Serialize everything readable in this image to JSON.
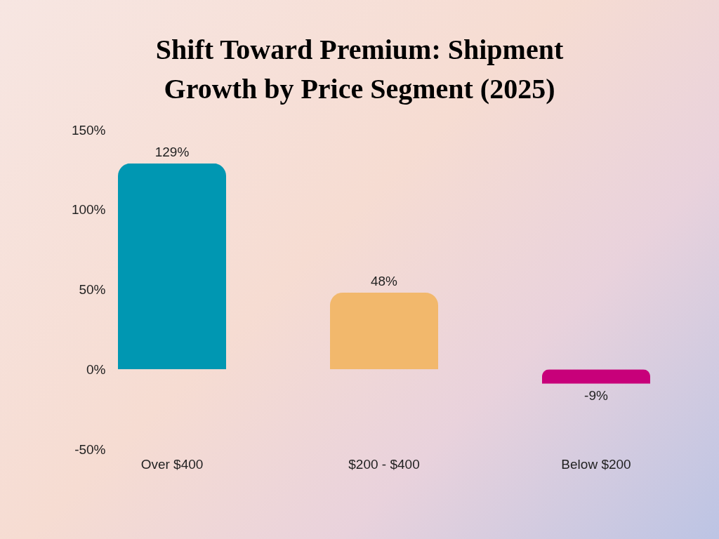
{
  "chart_data": {
    "type": "bar",
    "title": "Shift Toward Premium: Shipment Growth by Price Segment (2025)",
    "categories": [
      "Over $400",
      "$200 - $400",
      "Below $200"
    ],
    "values": [
      129,
      48,
      -9
    ],
    "colors": [
      "#0097b2",
      "#f2b86c",
      "#c8007a"
    ],
    "value_labels": [
      "129%",
      "48%",
      "-9%"
    ],
    "ylim": [
      -50,
      150
    ],
    "yticks": [
      {
        "value": -50,
        "label": "-50%"
      },
      {
        "value": 0,
        "label": "0%"
      },
      {
        "value": 50,
        "label": "50%"
      },
      {
        "value": 100,
        "label": "100%"
      },
      {
        "value": 150,
        "label": "150%"
      }
    ]
  }
}
